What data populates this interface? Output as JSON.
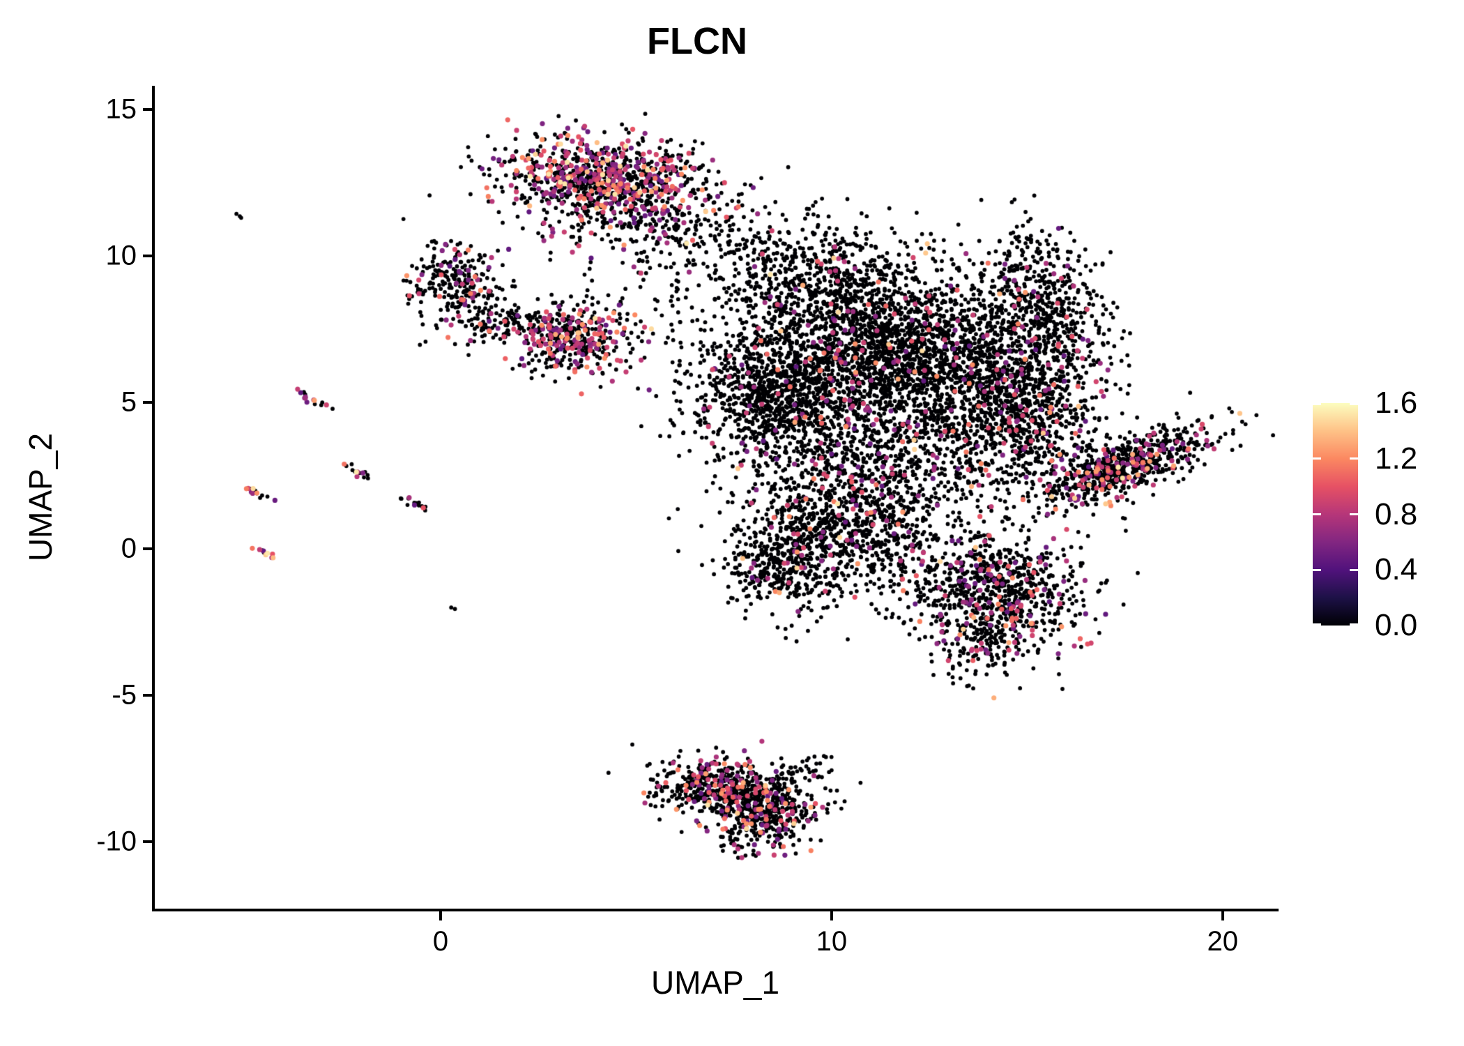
{
  "chart_data": {
    "type": "scatter",
    "title": "FLCN",
    "xlabel": "UMAP_1",
    "ylabel": "UMAP_2",
    "x_range": [
      -7.31,
      21.36
    ],
    "y_range": [
      -12.29,
      15.81
    ],
    "x_ticks": [
      {
        "v": 0,
        "label": "0"
      },
      {
        "v": 10,
        "label": "10"
      },
      {
        "v": 20,
        "label": "20"
      }
    ],
    "y_ticks": [
      {
        "v": 15,
        "label": "15"
      },
      {
        "v": 10,
        "label": "10"
      },
      {
        "v": 5,
        "label": "5"
      },
      {
        "v": 0,
        "label": "0"
      },
      {
        "v": -5,
        "label": "-5"
      },
      {
        "v": -10,
        "label": "-10"
      }
    ],
    "grid": false,
    "legend_position": "right",
    "colorbar": {
      "label_values": [
        {
          "v": 1.6,
          "label": "1.6"
        },
        {
          "v": 1.2,
          "label": "1.2"
        },
        {
          "v": 0.8,
          "label": "0.8"
        },
        {
          "v": 0.4,
          "label": "0.4"
        },
        {
          "v": 0.0,
          "label": "0.0"
        }
      ],
      "domain": [
        0.0,
        1.6
      ],
      "palette_name": "magma",
      "stops": [
        {
          "t": 0.0,
          "c": "#000004"
        },
        {
          "t": 0.125,
          "c": "#1D1147"
        },
        {
          "t": 0.25,
          "c": "#51127C"
        },
        {
          "t": 0.375,
          "c": "#822681"
        },
        {
          "t": 0.5,
          "c": "#B63679"
        },
        {
          "t": 0.625,
          "c": "#E65164"
        },
        {
          "t": 0.75,
          "c": "#FB8861"
        },
        {
          "t": 0.875,
          "c": "#FEC287"
        },
        {
          "t": 1.0,
          "c": "#FCFDBF"
        }
      ]
    },
    "point_color_zero": "#000004",
    "seed": 1234,
    "clusters": [
      {
        "name": "top-cluster-core",
        "n": 650,
        "cx": 4.05,
        "cy": 12.75,
        "sx": 1.15,
        "sy": 0.62,
        "rot": -8,
        "frac": 0.4
      },
      {
        "name": "top-cluster-fringe",
        "n": 420,
        "cx": 4.5,
        "cy": 11.9,
        "sx": 1.6,
        "sy": 0.95,
        "rot": -5,
        "frac": 0.22
      },
      {
        "name": "top-trail",
        "n": 170,
        "cx": 6.6,
        "cy": 11.0,
        "sx": 1.3,
        "sy": 0.9,
        "rot": -20,
        "frac": 0.06
      },
      {
        "name": "left-hook",
        "n": 260,
        "cx": 0.45,
        "cy": 8.95,
        "sx": 0.62,
        "sy": 0.72,
        "rot": 0,
        "frac": 0.15
      },
      {
        "name": "left-hook-tail",
        "n": 70,
        "cx": 1.4,
        "cy": 7.6,
        "sx": 0.55,
        "sy": 0.3,
        "rot": 15,
        "frac": 0.15
      },
      {
        "name": "left-cluster-2",
        "n": 420,
        "cx": 3.35,
        "cy": 7.2,
        "sx": 0.8,
        "sy": 0.62,
        "rot": -10,
        "frac": 0.3
      },
      {
        "name": "bridge-sparse",
        "n": 60,
        "cx": 5.6,
        "cy": 8.6,
        "sx": 0.9,
        "sy": 1.1,
        "rot": 0,
        "frac": 0.05
      },
      {
        "name": "main-top-bridge",
        "n": 480,
        "cx": 9.4,
        "cy": 9.2,
        "sx": 1.05,
        "sy": 1.0,
        "rot": 0,
        "frac": 0.05
      },
      {
        "name": "main-core",
        "n": 2700,
        "cx": 11.9,
        "cy": 6.6,
        "sx": 1.95,
        "sy": 1.55,
        "rot": 0,
        "frac": 0.05
      },
      {
        "name": "main-left-lobe",
        "n": 900,
        "cx": 8.4,
        "cy": 5.2,
        "sx": 1.05,
        "sy": 1.25,
        "rot": 0,
        "frac": 0.06
      },
      {
        "name": "main-mid-band",
        "n": 500,
        "cx": 11.6,
        "cy": 3.0,
        "sx": 1.7,
        "sy": 1.0,
        "rot": 0,
        "frac": 0.07
      },
      {
        "name": "right-arc",
        "n": 430,
        "cx": 15.35,
        "cy": 8.6,
        "sx": 0.72,
        "sy": 1.25,
        "rot": 12,
        "frac": 0.06
      },
      {
        "name": "right-lobe",
        "n": 750,
        "cx": 15.0,
        "cy": 4.6,
        "sx": 0.95,
        "sy": 1.35,
        "rot": 0,
        "frac": 0.12
      },
      {
        "name": "lower-mid",
        "n": 950,
        "cx": 10.3,
        "cy": 0.6,
        "sx": 1.35,
        "sy": 1.15,
        "rot": 0,
        "frac": 0.06
      },
      {
        "name": "lower-left-spur",
        "n": 260,
        "cx": 8.55,
        "cy": -0.6,
        "sx": 0.6,
        "sy": 0.85,
        "rot": 0,
        "frac": 0.08
      },
      {
        "name": "lower-right-blob",
        "n": 800,
        "cx": 14.2,
        "cy": -1.5,
        "sx": 1.15,
        "sy": 1.0,
        "rot": -15,
        "frac": 0.14
      },
      {
        "name": "lower-right-tail",
        "n": 120,
        "cx": 13.9,
        "cy": -3.3,
        "sx": 0.5,
        "sy": 0.7,
        "rot": -20,
        "frac": 0.12
      },
      {
        "name": "right-arm",
        "n": 700,
        "cx": 17.5,
        "cy": 2.8,
        "sx": 1.3,
        "sy": 0.45,
        "rot": 28,
        "frac": 0.16
      },
      {
        "name": "bottom-cluster",
        "n": 620,
        "cx": 7.45,
        "cy": -8.3,
        "sx": 1.05,
        "sy": 0.55,
        "rot": -12,
        "frac": 0.22
      },
      {
        "name": "bottom-cluster-lower",
        "n": 260,
        "cx": 8.3,
        "cy": -9.3,
        "sx": 0.55,
        "sy": 0.6,
        "rot": -30,
        "frac": 0.22
      },
      {
        "name": "bottom-tail",
        "n": 40,
        "cx": 9.3,
        "cy": -7.6,
        "sx": 0.45,
        "sy": 0.25,
        "rot": 20,
        "frac": 0.08
      },
      {
        "name": "streak-1",
        "n": 16,
        "cx": -3.35,
        "cy": 5.15,
        "sx": 0.3,
        "sy": 0.05,
        "rot": -35,
        "frac": 0.45
      },
      {
        "name": "streak-2",
        "n": 14,
        "cx": -2.1,
        "cy": 2.6,
        "sx": 0.22,
        "sy": 0.06,
        "rot": -35,
        "frac": 0.35
      },
      {
        "name": "streak-2-pale",
        "n": 1,
        "cx": -2.16,
        "cy": 2.62,
        "sx": 0.02,
        "sy": 0.02,
        "rot": 0,
        "frac": 1,
        "vmin": 1.45,
        "vmax": 1.6
      },
      {
        "name": "streak-3",
        "n": 14,
        "cx": -4.6,
        "cy": 1.85,
        "sx": 0.26,
        "sy": 0.05,
        "rot": -35,
        "frac": 0.5
      },
      {
        "name": "streak-4",
        "n": 16,
        "cx": -0.65,
        "cy": 1.55,
        "sx": 0.3,
        "sy": 0.06,
        "rot": -30,
        "frac": 0.1
      },
      {
        "name": "streak-5",
        "n": 10,
        "cx": -4.5,
        "cy": -0.12,
        "sx": 0.18,
        "sy": 0.05,
        "rot": -35,
        "frac": 0.7
      },
      {
        "name": "lone-dot",
        "n": 2,
        "cx": 0.28,
        "cy": -2.05,
        "sx": 0.04,
        "sy": 0.03,
        "rot": 0,
        "frac": 0
      },
      {
        "name": "streak-top-left",
        "n": 3,
        "cx": -5.2,
        "cy": 11.4,
        "sx": 0.08,
        "sy": 0.04,
        "rot": -35,
        "frac": 0
      },
      {
        "name": "pale-bottom",
        "n": 1,
        "cx": 7.6,
        "cy": -9.05,
        "sx": 0.02,
        "sy": 0.02,
        "rot": 0,
        "frac": 1,
        "vmin": 1.4,
        "vmax": 1.5
      }
    ]
  }
}
